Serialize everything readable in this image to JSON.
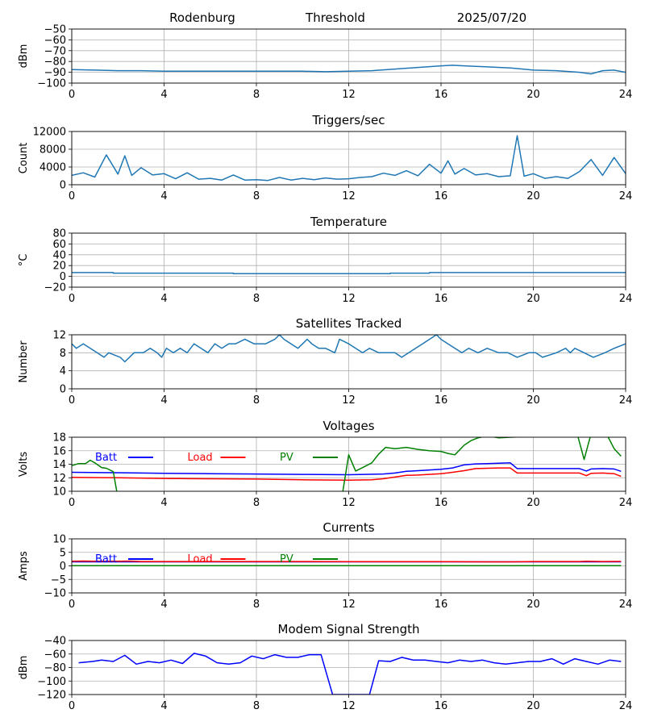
{
  "header": {
    "station": "Rodenburg",
    "panel": "Threshold",
    "date": "2025/07/20"
  },
  "colors": {
    "default": "#1f77b4",
    "batt": "#0000ff",
    "load": "#ff0000",
    "pv": "#008000",
    "grid": "#b0b0b0"
  },
  "chart_data": [
    {
      "type": "line",
      "title": "",
      "ylabel": "dBm",
      "xlim": [
        0,
        24
      ],
      "ylim": [
        -100,
        -50
      ],
      "xticks": [
        "0",
        "4",
        "8",
        "12",
        "16",
        "20",
        "24"
      ],
      "yticks": [
        "−100",
        "−90",
        "−80",
        "−70",
        "−60",
        "−50"
      ],
      "grid": true,
      "series": [
        {
          "color": "#1f77b4",
          "x": [
            0,
            1,
            2,
            3,
            4,
            5,
            6,
            7,
            8,
            9,
            10,
            11,
            12,
            13,
            14,
            15,
            16,
            16.5,
            17,
            18,
            19,
            20,
            21,
            22,
            22.5,
            23,
            23.5,
            24
          ],
          "y": [
            -87.5,
            -88,
            -88.5,
            -88.5,
            -89,
            -89,
            -89,
            -89,
            -89,
            -89,
            -89,
            -89.5,
            -89,
            -88.5,
            -87,
            -85.5,
            -84,
            -83.5,
            -84,
            -85,
            -86,
            -88,
            -88.5,
            -90,
            -91.5,
            -88.5,
            -88,
            -90
          ]
        }
      ]
    },
    {
      "type": "line",
      "title": "Triggers/sec",
      "ylabel": "Count",
      "xlim": [
        0,
        24
      ],
      "ylim": [
        0,
        12500
      ],
      "xticks": [
        "0",
        "4",
        "8",
        "12",
        "16",
        "20",
        "24"
      ],
      "yticks": [
        "0",
        "4000",
        "8000",
        "12000"
      ],
      "grid": true,
      "series": [
        {
          "color": "#1f77b4",
          "x": [
            0,
            0.5,
            1,
            1.5,
            2,
            2.3,
            2.6,
            3,
            3.5,
            4,
            4.5,
            5,
            5.5,
            6,
            6.5,
            7,
            7.5,
            8,
            8.5,
            9,
            9.5,
            10,
            10.5,
            11,
            11.5,
            12,
            12.5,
            13,
            13.5,
            14,
            14.5,
            15,
            15.5,
            16,
            16.3,
            16.6,
            17,
            17.5,
            18,
            18.5,
            19,
            19.3,
            19.6,
            20,
            20.5,
            21,
            21.5,
            22,
            22.5,
            23,
            23.5,
            24
          ],
          "y": [
            2200,
            2800,
            1800,
            7000,
            2500,
            6800,
            2200,
            4000,
            2300,
            2600,
            1400,
            2800,
            1300,
            1500,
            1100,
            2300,
            1100,
            1200,
            1000,
            1700,
            1100,
            1500,
            1200,
            1600,
            1300,
            1400,
            1700,
            1900,
            2700,
            2200,
            3300,
            2100,
            4800,
            2700,
            5600,
            2500,
            3800,
            2300,
            2600,
            1900,
            2100,
            11500,
            2000,
            2600,
            1500,
            1900,
            1500,
            3100,
            5900,
            2200,
            6400,
            2600
          ]
        }
      ]
    },
    {
      "type": "line",
      "title": "Temperature",
      "ylabel": "°C",
      "xlim": [
        0,
        24
      ],
      "ylim": [
        -20,
        80
      ],
      "xticks": [
        "0",
        "4",
        "8",
        "12",
        "16",
        "20",
        "24"
      ],
      "yticks": [
        "−20",
        "0",
        "20",
        "40",
        "60",
        "80"
      ],
      "grid": true,
      "series": [
        {
          "color": "#1f77b4",
          "x": [
            0,
            1.8,
            1.8,
            7,
            7,
            13.8,
            13.8,
            15.5,
            15.5,
            24
          ],
          "y": [
            7,
            7,
            6,
            6,
            5,
            5,
            6,
            6,
            7,
            7
          ]
        }
      ]
    },
    {
      "type": "line",
      "title": "Satellites Tracked",
      "ylabel": "Number",
      "xlim": [
        0,
        24
      ],
      "ylim": [
        0,
        12
      ],
      "xticks": [
        "0",
        "4",
        "8",
        "12",
        "16",
        "20",
        "24"
      ],
      "yticks": [
        "0",
        "4",
        "8",
        "12"
      ],
      "grid": true,
      "series": [
        {
          "color": "#1f77b4",
          "x": [
            0,
            0.2,
            0.5,
            0.8,
            1.1,
            1.4,
            1.6,
            2.1,
            2.3,
            2.5,
            2.7,
            3.1,
            3.4,
            3.7,
            3.9,
            4.1,
            4.4,
            4.7,
            5,
            5.3,
            5.6,
            5.9,
            6.2,
            6.5,
            6.8,
            7.1,
            7.5,
            7.9,
            8.4,
            8.8,
            9.0,
            9.2,
            9.5,
            9.8,
            10.0,
            10.2,
            10.4,
            10.7,
            11.0,
            11.4,
            11.6,
            12.0,
            12.3,
            12.6,
            12.9,
            13.3,
            13.6,
            14.0,
            14.3,
            14.6,
            14.9,
            15.2,
            15.5,
            15.8,
            16.0,
            16.3,
            16.6,
            16.9,
            17.2,
            17.6,
            18.0,
            18.5,
            18.9,
            19.3,
            19.8,
            20.1,
            20.4,
            21.0,
            21.4,
            21.6,
            21.8,
            22.2,
            22.6,
            23.1,
            23.5,
            24
          ],
          "y": [
            10,
            9,
            10,
            9,
            8,
            7,
            8,
            7,
            6,
            7,
            8,
            8,
            9,
            8,
            7,
            9,
            8,
            9,
            8,
            10,
            9,
            8,
            10,
            9,
            10,
            10,
            11,
            10,
            10,
            11,
            12,
            11,
            10,
            9,
            10,
            11,
            10,
            9,
            9,
            8,
            11,
            10,
            9,
            8,
            9,
            8,
            8,
            8,
            7,
            8,
            9,
            10,
            11,
            12,
            11,
            10,
            9,
            8,
            9,
            8,
            9,
            8,
            8,
            7,
            8,
            8,
            7,
            8,
            9,
            8,
            9,
            8,
            7,
            8,
            9,
            10
          ]
        }
      ]
    },
    {
      "type": "line",
      "title": "Voltages",
      "ylabel": "Volts",
      "xlim": [
        0,
        24
      ],
      "ylim": [
        10,
        18
      ],
      "xticks": [
        "0",
        "4",
        "8",
        "12",
        "16",
        "20",
        "24"
      ],
      "yticks": [
        "10",
        "12",
        "14",
        "16",
        "18"
      ],
      "grid": true,
      "legend_position": "top-left",
      "series": [
        {
          "name": "Batt",
          "color": "#0000ff",
          "x": [
            0,
            2,
            4,
            6,
            8,
            10,
            12,
            13.5,
            14,
            14.5,
            15,
            16,
            16.5,
            17,
            17.5,
            18,
            18.5,
            19,
            19.3,
            20,
            21,
            22,
            22.3,
            22.5,
            23,
            23.5,
            23.8
          ],
          "y": [
            12.8,
            12.75,
            12.65,
            12.6,
            12.55,
            12.5,
            12.45,
            12.55,
            12.7,
            12.95,
            13.05,
            13.25,
            13.45,
            13.9,
            14.05,
            14.1,
            14.15,
            14.2,
            13.35,
            13.35,
            13.35,
            13.35,
            13.0,
            13.3,
            13.35,
            13.3,
            12.95
          ]
        },
        {
          "name": "Load",
          "color": "#ff0000",
          "x": [
            0,
            2,
            4,
            6,
            8,
            10,
            12,
            13,
            13.5,
            14,
            14.5,
            15,
            16,
            16.5,
            17,
            17.5,
            18,
            18.5,
            19,
            19.3,
            20,
            21,
            22,
            22.3,
            22.5,
            23,
            23.5,
            23.8
          ],
          "y": [
            12.05,
            12.0,
            11.9,
            11.85,
            11.8,
            11.7,
            11.65,
            11.7,
            11.85,
            12.1,
            12.35,
            12.4,
            12.6,
            12.8,
            13.05,
            13.35,
            13.4,
            13.45,
            13.45,
            12.7,
            12.7,
            12.7,
            12.7,
            12.3,
            12.65,
            12.7,
            12.6,
            12.2
          ]
        },
        {
          "name": "PV",
          "color": "#008000",
          "x": [
            0,
            0.3,
            0.6,
            0.8,
            1,
            1.3,
            1.5,
            1.8,
            2.0,
            2.2,
            11.7,
            12.0,
            12.3,
            12.6,
            13.0,
            13.3,
            13.6,
            14.0,
            14.5,
            15.0,
            15.5,
            16.0,
            16.3,
            16.6,
            17.0,
            17.3,
            17.6,
            18.0,
            18.5,
            21.9,
            22.2,
            22.5,
            23.2,
            23.5,
            23.8
          ],
          "y": [
            13.8,
            14.1,
            14.1,
            14.6,
            14.2,
            13.5,
            13.4,
            12.9,
            9.0,
            9.0,
            9.0,
            15.4,
            13.0,
            13.5,
            14.2,
            15.5,
            16.5,
            16.3,
            16.5,
            16.2,
            16.0,
            15.9,
            15.6,
            15.4,
            16.8,
            17.5,
            17.9,
            18.2,
            17.9,
            18.5,
            14.7,
            18.5,
            18.3,
            16.3,
            15.2
          ]
        }
      ]
    },
    {
      "type": "line",
      "title": "Currents",
      "ylabel": "Amps",
      "xlim": [
        0,
        24
      ],
      "ylim": [
        -10,
        10
      ],
      "xticks": [
        "0",
        "4",
        "8",
        "12",
        "16",
        "20",
        "24"
      ],
      "yticks": [
        "−10",
        "−5",
        "0",
        "5",
        "10"
      ],
      "grid": true,
      "legend_position": "top-left",
      "series": [
        {
          "name": "Batt",
          "color": "#0000ff",
          "x": [
            0,
            23.8
          ],
          "y": [
            1.5,
            1.5
          ]
        },
        {
          "name": "Load",
          "color": "#ff0000",
          "x": [
            0,
            0.5,
            1,
            2,
            2.5,
            3,
            4,
            6,
            8,
            10,
            12,
            14,
            16,
            18,
            19,
            20,
            22,
            22.3,
            23,
            23.8
          ],
          "y": [
            1.7,
            1.8,
            1.7,
            1.7,
            1.8,
            1.6,
            1.6,
            1.6,
            1.6,
            1.6,
            1.55,
            1.55,
            1.55,
            1.5,
            1.5,
            1.6,
            1.6,
            1.7,
            1.6,
            1.65
          ]
        },
        {
          "name": "PV",
          "color": "#008000",
          "x": [
            0,
            23.8
          ],
          "y": [
            0.1,
            0.1
          ]
        }
      ]
    },
    {
      "type": "line",
      "title": "Modem Signal Strength",
      "ylabel": "dBm",
      "xlim": [
        0,
        24
      ],
      "ylim": [
        -120,
        -40
      ],
      "xticks": [
        "0",
        "4",
        "8",
        "12",
        "16",
        "20",
        "24"
      ],
      "yticks": [
        "−120",
        "−100",
        "−80",
        "−60",
        "−40"
      ],
      "grid": true,
      "series": [
        {
          "color": "#0000ff",
          "x": [
            0.3,
            0.9,
            1.3,
            1.8,
            2.3,
            2.8,
            3.3,
            3.8,
            4.3,
            4.8,
            5.3,
            5.8,
            6.3,
            6.8,
            7.3,
            7.8,
            8.3,
            8.8,
            9.3,
            9.8,
            10.3,
            10.8,
            11.3,
            12.9,
            13.3,
            13.8,
            14.3,
            14.8,
            15.3,
            15.8,
            16.3,
            16.8,
            17.3,
            17.8,
            18.3,
            18.8,
            19.3,
            19.8,
            20.3,
            20.8,
            21.3,
            21.8,
            22.3,
            22.8,
            23.3,
            23.8
          ],
          "y": [
            -73,
            -71,
            -69,
            -71,
            -62,
            -75,
            -71,
            -73,
            -69,
            -74,
            -59,
            -63,
            -73,
            -75,
            -73,
            -63,
            -67,
            -61,
            -65,
            -65,
            -61,
            -61,
            -120,
            -120,
            -70,
            -71,
            -65,
            -69,
            -69,
            -71,
            -73,
            -69,
            -71,
            -69,
            -73,
            -75,
            -73,
            -71,
            -71,
            -67,
            -75,
            -67,
            -71,
            -75,
            -69,
            -71
          ]
        }
      ]
    }
  ]
}
